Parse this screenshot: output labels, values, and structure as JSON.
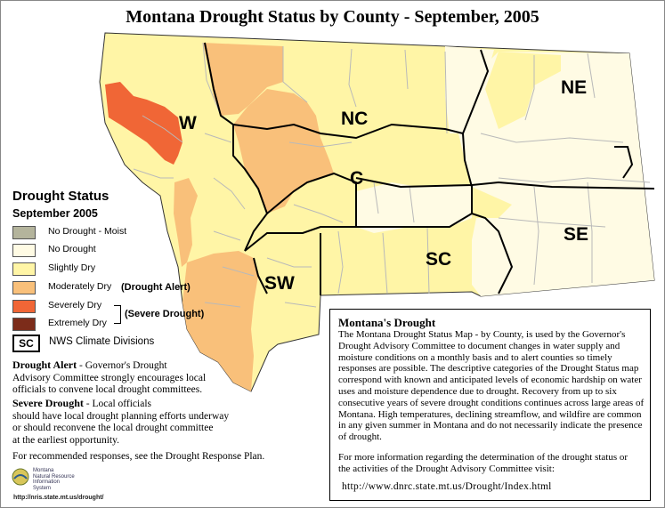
{
  "title": "Montana Drought Status by County - September, 2005",
  "colors": {
    "no_drought_moist": "#b4b49c",
    "no_drought": "#fffbe4",
    "slightly_dry": "#fff5a6",
    "moderately_dry": "#f9c07a",
    "severely_dry": "#f06636",
    "extremely_dry": "#7c2c1a",
    "county_border": "#b9b9b9",
    "division_border": "#000000"
  },
  "divisions": [
    {
      "code": "W",
      "status": "slightly_dry"
    },
    {
      "code": "NC",
      "status": "slightly_dry"
    },
    {
      "code": "NE",
      "status": "no_drought"
    },
    {
      "code": "C",
      "status": "slightly_dry"
    },
    {
      "code": "SW",
      "status": "slightly_dry"
    },
    {
      "code": "SC",
      "status": "slightly_dry"
    },
    {
      "code": "SE",
      "status": "no_drought"
    }
  ],
  "legend": {
    "title": "Drought Status",
    "subtitle": "September 2005",
    "items": [
      {
        "label": "No Drought - Moist",
        "color_key": "no_drought_moist"
      },
      {
        "label": "No Drought",
        "color_key": "no_drought"
      },
      {
        "label": "Slightly Dry",
        "color_key": "slightly_dry"
      },
      {
        "label": "Moderately Dry",
        "color_key": "moderately_dry"
      },
      {
        "label": "Severely Dry",
        "color_key": "severely_dry"
      },
      {
        "label": "Extremely Dry",
        "color_key": "extremely_dry"
      }
    ],
    "alert_label": "(Drought Alert)",
    "severe_label": "(Severe Drought)",
    "divisions_code": "SC",
    "divisions_label": "NWS Climate Divisions"
  },
  "notes": {
    "alert_head": "Drought Alert",
    "alert_text_1": " - Governor's Drought",
    "alert_text_2": "Advisory Committee strongly encourages local",
    "alert_text_3": "officials to convene local drought committees.",
    "severe_head": "Severe Drought",
    "severe_text_1": " - Local officials",
    "severe_text_2": "should have local drought planning efforts underway",
    "severe_text_3": "or should reconvene the local drought committee",
    "severe_text_4": "at the earliest opportunity.",
    "plan": "For recommended responses, see the Drought Response Plan."
  },
  "infobox": {
    "title": "Montana's Drought",
    "body": "The Montana Drought Status Map - by County, is used by the Governor's Drought Advisory Committee to document changes in water supply and moisture conditions on a monthly basis and to alert counties so timely responses are possible. The descriptive categories of the Drought Status map correspond with known and anticipated levels of economic hardship on water uses and moisture dependence due to drought. Recovery from up to six consecutive years of severe drought conditions continues across large areas of Montana. High temperatures, declining streamflow, and wildfire are common in any given summer in Montana and do not necessarily indicate the presence of drought.",
    "more": "For more information regarding the determination of the drought status or the activities of the Drought Advisory Committee visit:",
    "url": "http://www.dnrc.state.mt.us/Drought/Index.html"
  },
  "logo": {
    "line1": "Montana",
    "line2": "Natural Resource",
    "line3": "Information",
    "line4": "System",
    "url": "http://nris.state.mt.us/drought/"
  }
}
